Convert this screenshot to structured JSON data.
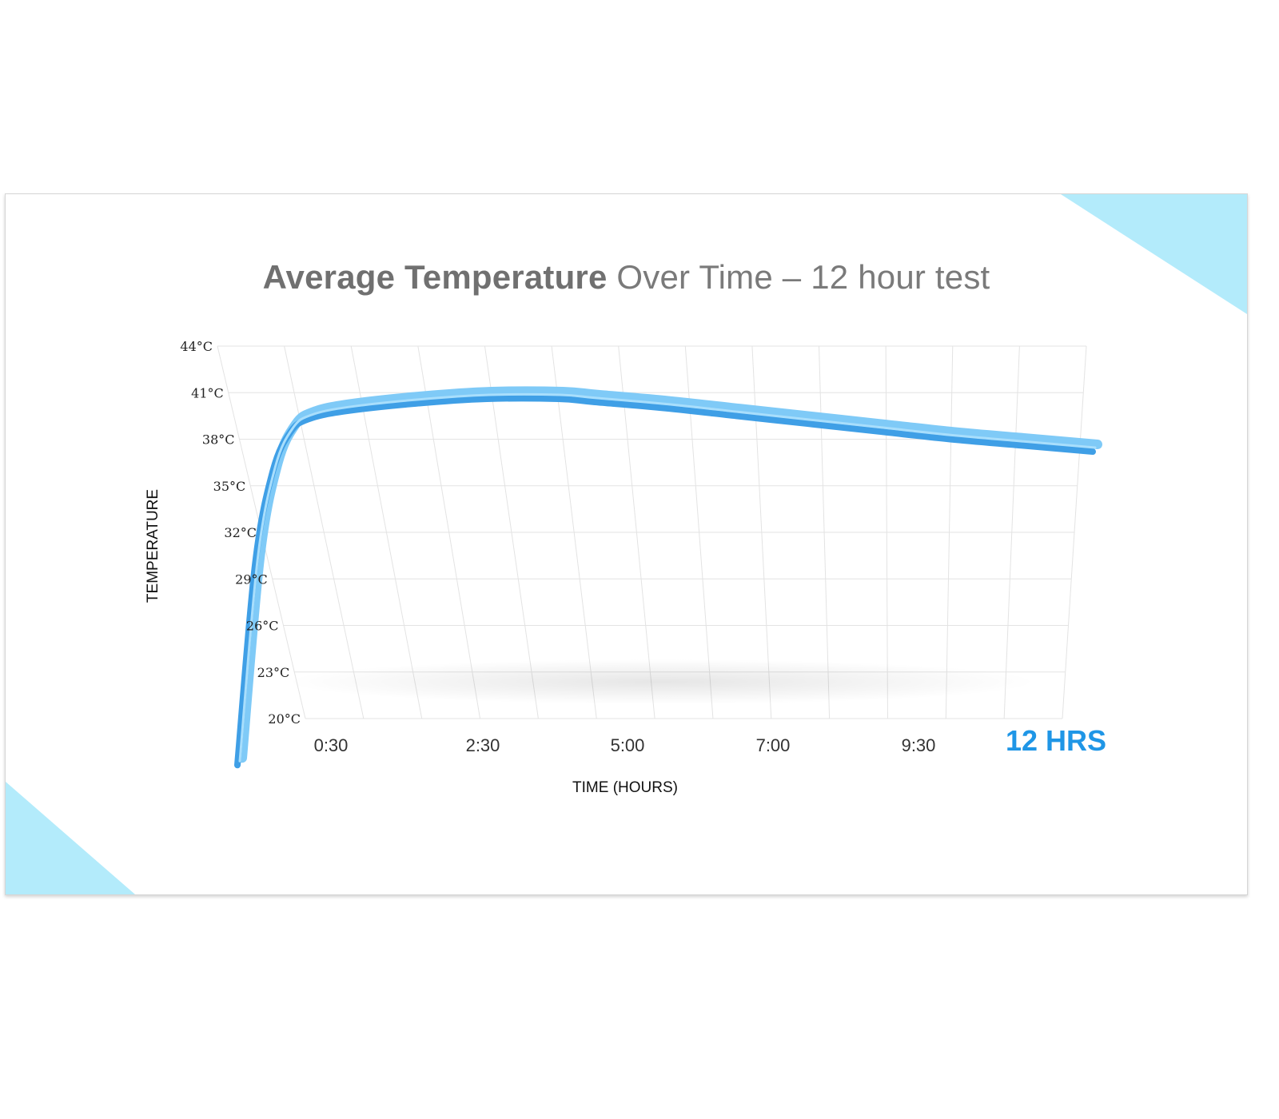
{
  "colors": {
    "accent_triangle": "#b3ebfb",
    "series": "#5bb8f5",
    "series_dark": "#2e86d0",
    "end_label": "#1f96e6"
  },
  "chart_data": {
    "type": "line",
    "title": "Average Temperature",
    "subtitle": "Over Time – 12 hour test",
    "xlabel": "TIME (HOURS)",
    "ylabel": "TEMPERATURE",
    "y_ticks": [
      "44°C",
      "41°C",
      "38°C",
      "35°C",
      "32°C",
      "29°C",
      "26°C",
      "23°C",
      "20°C"
    ],
    "x_ticks": [
      "0:30",
      "2:30",
      "5:00",
      "7:00",
      "9:30"
    ],
    "x_end_label": "12 HRS",
    "ylim": [
      20,
      44
    ],
    "xlim": [
      0,
      12
    ],
    "grid": true,
    "series": [
      {
        "x": [
          0,
          0.25,
          0.5,
          0.75,
          1.0,
          1.5,
          2.5,
          3.5,
          4.5,
          5.0,
          6.0,
          7.0,
          8.0,
          9.0,
          10.0,
          11.0,
          12.0
        ],
        "values": [
          17,
          30,
          36,
          38.5,
          39.3,
          39.8,
          40.3,
          40.6,
          40.6,
          40.4,
          40.0,
          39.5,
          39.0,
          38.5,
          38.0,
          37.6,
          37.2
        ]
      }
    ]
  }
}
